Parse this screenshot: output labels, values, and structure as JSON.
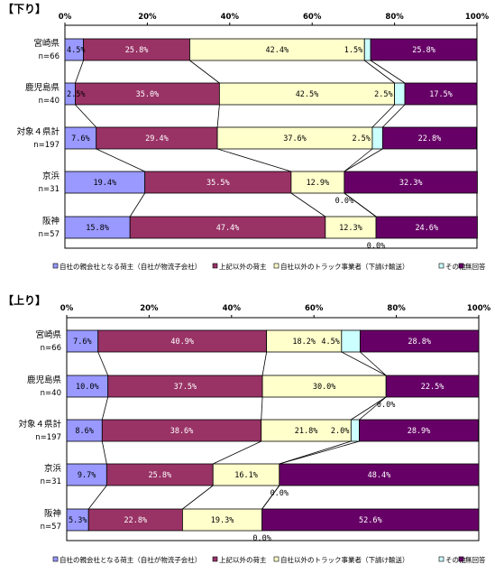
{
  "chart_data": [
    {
      "type": "bar",
      "orientation": "horizontal",
      "stacked": true,
      "title": "【下り】",
      "xlim": [
        0,
        100
      ],
      "ticks": [
        "0%",
        "20%",
        "40%",
        "60%",
        "80%",
        "100%"
      ],
      "categories": [
        {
          "name": "宮崎県",
          "n": "n=66"
        },
        {
          "name": "鹿児島県",
          "n": "n=40"
        },
        {
          "name": "対象４県計",
          "n": "n=197"
        },
        {
          "name": "京浜",
          "n": "n=31"
        },
        {
          "name": "阪神",
          "n": "n=57"
        }
      ],
      "series": [
        {
          "name": "自社の親会社となる荷主（自社が物流子会社）",
          "color": "#9999ff",
          "values": [
            4.5,
            2.5,
            7.6,
            19.4,
            15.8
          ],
          "labels": [
            "4.5%",
            "2.5%",
            "7.6%",
            "19.4%",
            "15.8%"
          ]
        },
        {
          "name": "上記以外の荷主",
          "color": "#993366",
          "values": [
            25.8,
            35.0,
            29.4,
            35.5,
            47.4
          ],
          "labels": [
            "25.8%",
            "35.0%",
            "29.4%",
            "35.5%",
            "47.4%"
          ]
        },
        {
          "name": "自社以外のトラック事業者（下請け輸送）",
          "color": "#ffffcc",
          "values": [
            42.4,
            42.5,
            37.6,
            12.9,
            12.3
          ],
          "labels": [
            "42.4%",
            "42.5%",
            "37.6%",
            "12.9%",
            "12.3%"
          ]
        },
        {
          "name": "その他",
          "color": "#ccffff",
          "values": [
            1.5,
            2.5,
            2.5,
            0.0,
            0.0
          ],
          "labels": [
            "1.5%",
            "2.5%",
            "2.5%",
            "0.0%",
            "0.0%"
          ]
        },
        {
          "name": "無回答",
          "color": "#660066",
          "values": [
            25.8,
            17.5,
            22.8,
            32.3,
            24.6
          ],
          "labels": [
            "25.8%",
            "17.5%",
            "22.8%",
            "32.3%",
            "24.6%"
          ]
        }
      ],
      "legend": "bottom"
    },
    {
      "type": "bar",
      "orientation": "horizontal",
      "stacked": true,
      "title": "【上り】",
      "xlim": [
        0,
        100
      ],
      "ticks": [
        "0%",
        "20%",
        "40%",
        "60%",
        "80%",
        "100%"
      ],
      "categories": [
        {
          "name": "宮崎県",
          "n": "n=66"
        },
        {
          "name": "鹿児島県",
          "n": "n=40"
        },
        {
          "name": "対象４県計",
          "n": "n=197"
        },
        {
          "name": "京浜",
          "n": "n=31"
        },
        {
          "name": "阪神",
          "n": "n=57"
        }
      ],
      "series": [
        {
          "name": "自社の親会社となる荷主（自社が物流子会社）",
          "color": "#9999ff",
          "values": [
            7.6,
            10.0,
            8.6,
            9.7,
            5.3
          ],
          "labels": [
            "7.6%",
            "10.0%",
            "8.6%",
            "9.7%",
            "5.3%"
          ]
        },
        {
          "name": "上記以外の荷主",
          "color": "#993366",
          "values": [
            40.9,
            37.5,
            38.6,
            25.8,
            22.8
          ],
          "labels": [
            "40.9%",
            "37.5%",
            "38.6%",
            "25.8%",
            "22.8%"
          ]
        },
        {
          "name": "自社以外のトラック事業者（下請け輸送）",
          "color": "#ffffcc",
          "values": [
            18.2,
            30.0,
            21.8,
            16.1,
            19.3
          ],
          "labels": [
            "18.2%",
            "30.0%",
            "21.8%",
            "16.1%",
            "19.3%"
          ]
        },
        {
          "name": "その他",
          "color": "#ccffff",
          "values": [
            4.5,
            0.0,
            2.0,
            0.0,
            0.0
          ],
          "labels": [
            "4.5%",
            "0.0%",
            "2.0%",
            "0.0%",
            "0.0%"
          ]
        },
        {
          "name": "無回答",
          "color": "#660066",
          "values": [
            28.8,
            22.5,
            28.9,
            48.4,
            52.6
          ],
          "labels": [
            "28.8%",
            "22.5%",
            "28.9%",
            "48.4%",
            "52.6%"
          ]
        }
      ],
      "legend": "bottom"
    }
  ]
}
